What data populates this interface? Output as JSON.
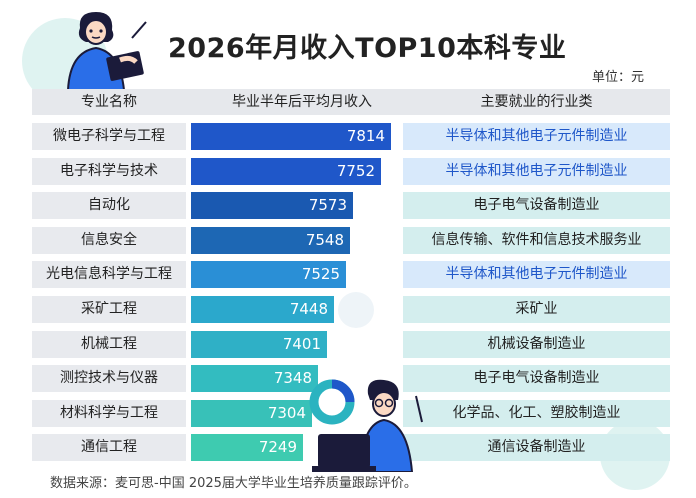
{
  "title": "2026年月收入TOP10本科专业",
  "unit_label": "单位：元",
  "headers": {
    "major": "专业名称",
    "salary": "毕业半年后平均月收入",
    "industry": "主要就业的行业类"
  },
  "source": "数据来源：麦可思-中国 2025届大学毕业生培养质量跟踪评价。",
  "colors": {
    "bars": [
      "#1f57c9",
      "#1f57c9",
      "#1a59b1",
      "#1d67b4",
      "#2a8fd6",
      "#2ba8cc",
      "#2fb0c6",
      "#33bcc0",
      "#38c1b8",
      "#3ecbb0"
    ],
    "industry_blue_bg": "#d8e9fb",
    "industry_blue_text": "#1f57c9",
    "industry_teal_bg": "#d4eeee",
    "industry_teal_text": "#222222"
  },
  "chart_data": {
    "type": "bar",
    "orientation": "horizontal",
    "title": "2026年月收入TOP10本科专业",
    "categories": [
      "微电子科学与工程",
      "电子科学与技术",
      "自动化",
      "信息安全",
      "光电信息科学与工程",
      "采矿工程",
      "机械工程",
      "测控技术与仪器",
      "材料科学与工程",
      "通信工程"
    ],
    "values": [
      7814,
      7752,
      7573,
      7548,
      7525,
      7448,
      7401,
      7348,
      7304,
      7249
    ],
    "industries": [
      "半导体和其他电子元件制造业",
      "半导体和其他电子元件制造业",
      "电子电气设备制造业",
      "信息传输、软件和信息技术服务业",
      "半导体和其他电子元件制造业",
      "采矿业",
      "机械设备制造业",
      "电子电气设备制造业",
      "化学品、化工、塑胶制造业",
      "通信设备制造业"
    ],
    "industry_highlight": [
      true,
      true,
      false,
      false,
      true,
      false,
      false,
      false,
      false,
      false
    ],
    "grid": false,
    "legend": "none"
  }
}
